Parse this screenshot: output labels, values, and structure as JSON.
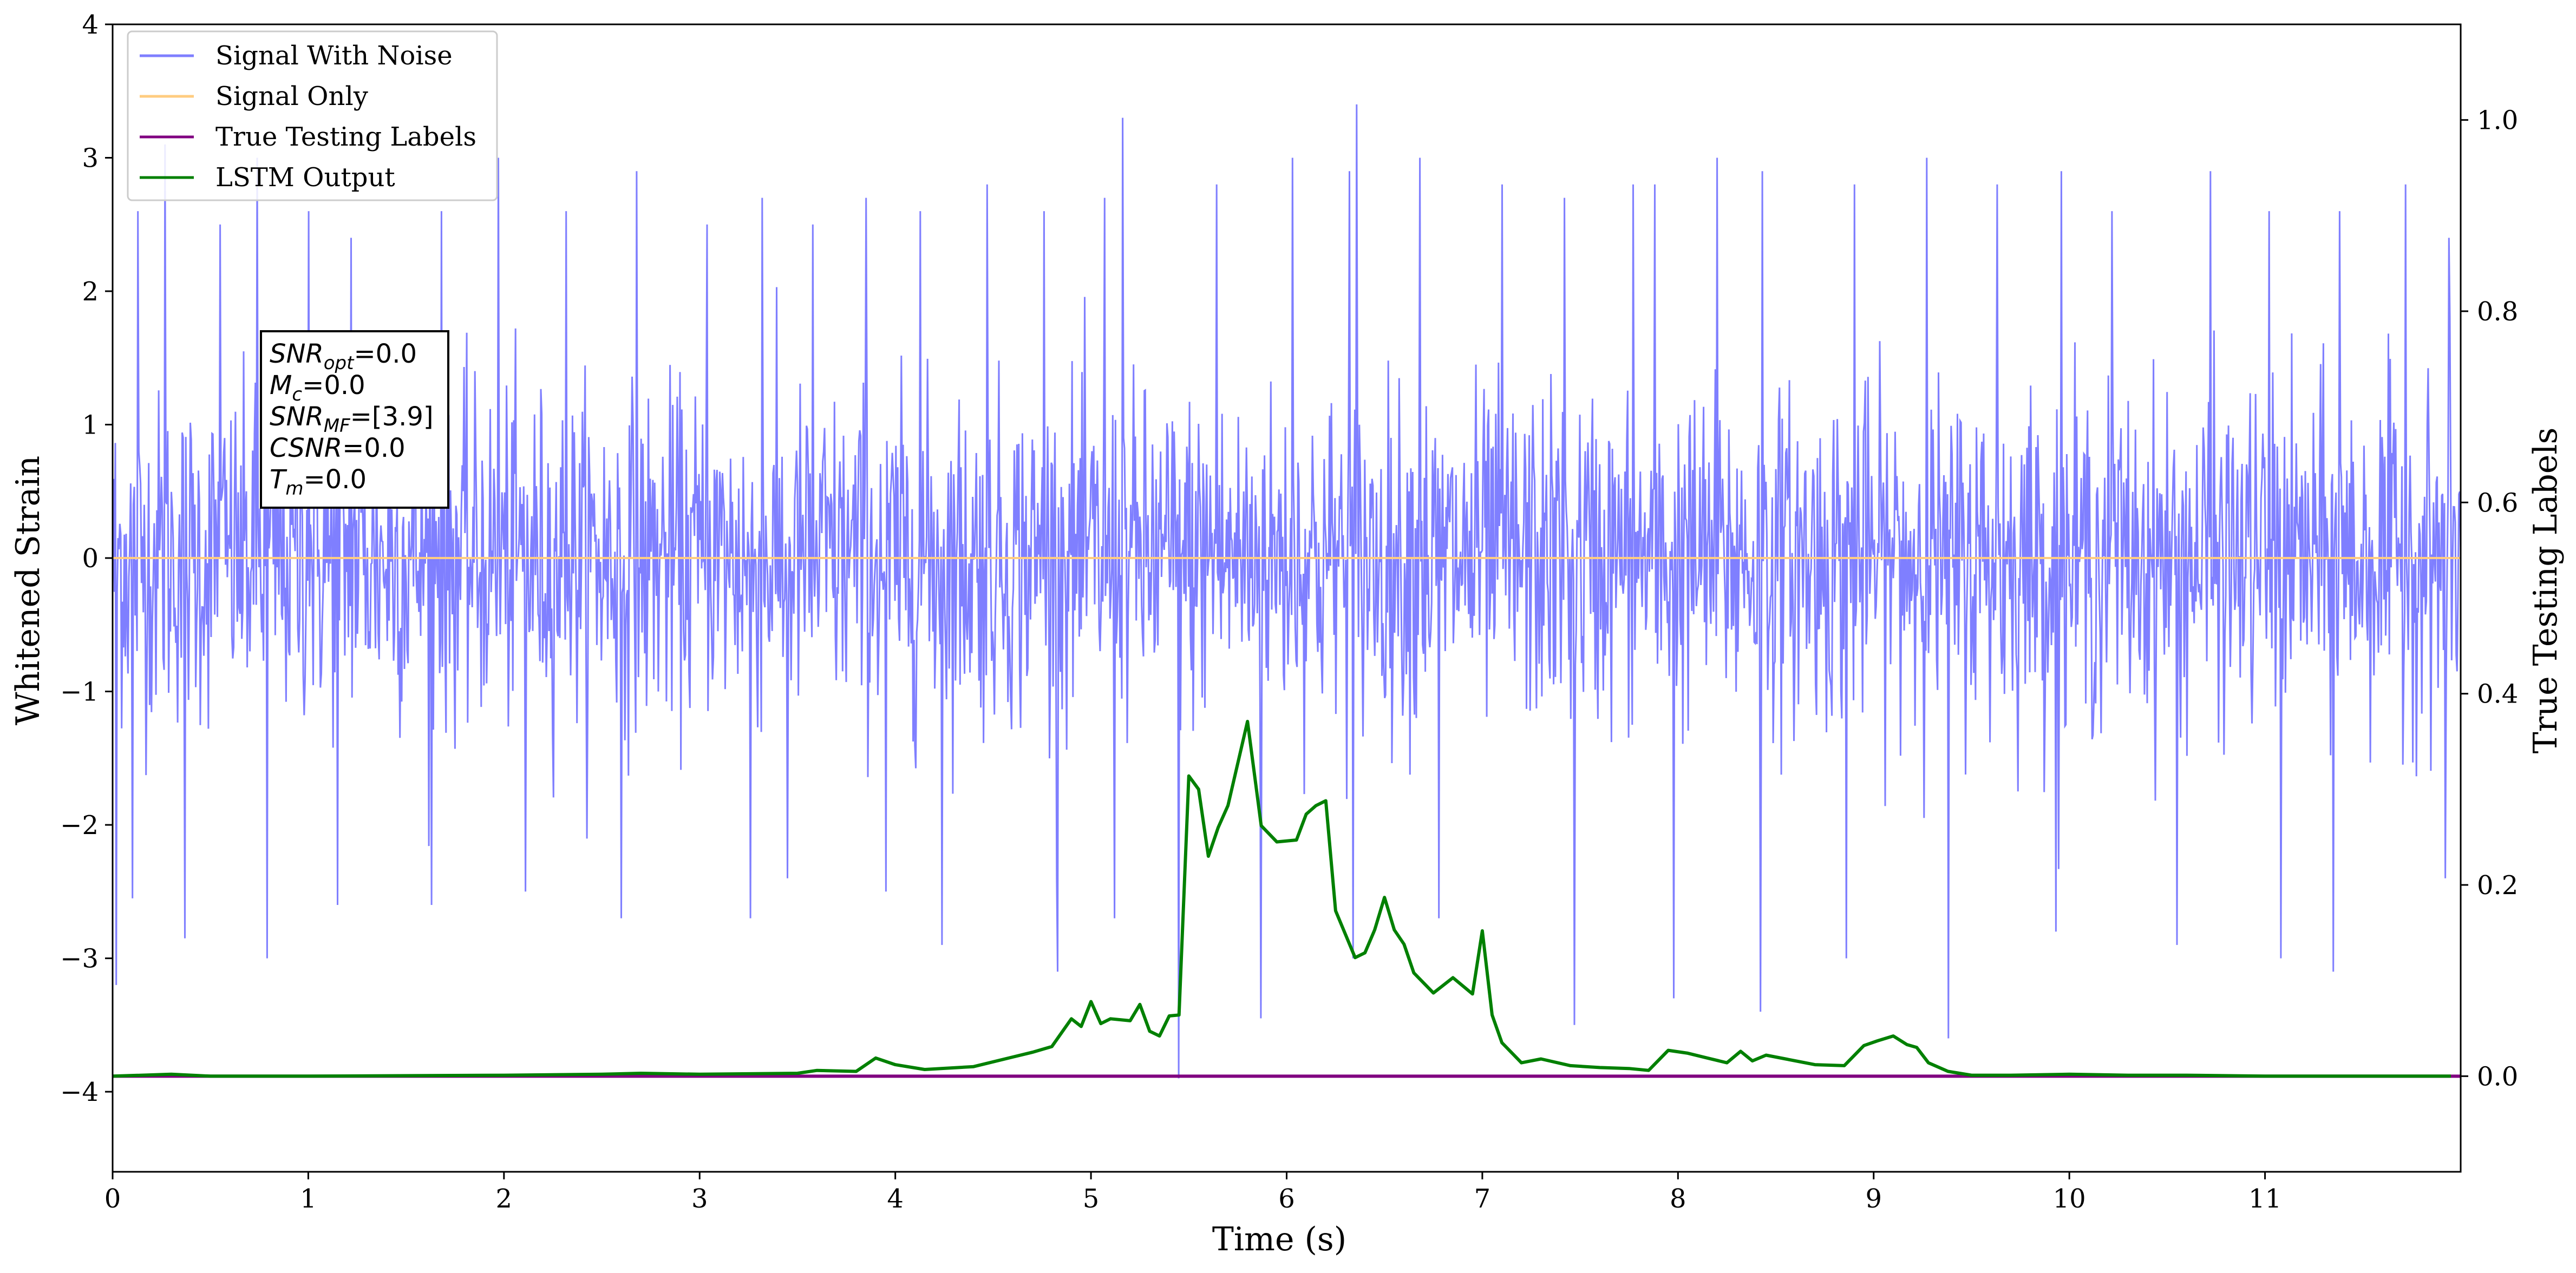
{
  "chart_data": {
    "type": "line",
    "xlabel": "Time (s)",
    "ylabel": "Whitened Strain",
    "y2label": "True Testing Labels",
    "xlim": [
      0,
      12.0
    ],
    "ylim": [
      -4.6,
      4.0
    ],
    "y2lim": [
      -0.1,
      1.1
    ],
    "xticks": [
      0,
      1,
      2,
      3,
      4,
      5,
      6,
      7,
      8,
      9,
      10,
      11
    ],
    "yticks": [
      -4,
      -3,
      -2,
      -1,
      0,
      1,
      2,
      3,
      4
    ],
    "y2ticks": [
      0.0,
      0.2,
      0.4,
      0.6,
      0.8,
      1.0
    ],
    "grid": false,
    "legend_position": "top-left",
    "series": [
      {
        "name": "Signal With Noise",
        "axis": "left",
        "color": "#7f7fff",
        "summary": "whitened noise between about -3.6 and 3.6 over 0-12 s",
        "peaks_positive": [
          [
            0.02,
            2.4
          ],
          [
            0.13,
            2.6
          ],
          [
            0.27,
            3.1
          ],
          [
            0.37,
            2.8
          ],
          [
            0.55,
            2.5
          ],
          [
            0.74,
            3.0
          ],
          [
            1.0,
            2.6
          ],
          [
            1.22,
            2.4
          ],
          [
            1.68,
            2.6
          ],
          [
            1.97,
            3.0
          ],
          [
            2.32,
            2.6
          ],
          [
            2.68,
            2.9
          ],
          [
            3.04,
            2.5
          ],
          [
            3.32,
            2.7
          ],
          [
            3.58,
            2.5
          ],
          [
            3.85,
            2.7
          ],
          [
            4.13,
            2.6
          ],
          [
            4.47,
            2.8
          ],
          [
            4.76,
            2.6
          ],
          [
            5.07,
            2.7
          ],
          [
            5.16,
            3.3
          ],
          [
            5.64,
            2.8
          ],
          [
            6.03,
            3.0
          ],
          [
            6.36,
            3.4
          ],
          [
            6.32,
            2.9
          ],
          [
            6.68,
            3.0
          ],
          [
            7.1,
            2.8
          ],
          [
            7.42,
            2.7
          ],
          [
            7.77,
            2.8
          ],
          [
            7.88,
            2.8
          ],
          [
            8.2,
            3.0
          ],
          [
            8.43,
            2.9
          ],
          [
            8.9,
            2.8
          ],
          [
            9.27,
            3.0
          ],
          [
            9.63,
            2.8
          ],
          [
            9.96,
            2.9
          ],
          [
            10.22,
            2.6
          ],
          [
            10.72,
            2.9
          ],
          [
            11.02,
            2.6
          ],
          [
            11.38,
            2.6
          ],
          [
            11.72,
            2.8
          ],
          [
            11.94,
            2.4
          ]
        ],
        "peaks_negative": [
          [
            0.02,
            -3.2
          ],
          [
            0.1,
            -2.55
          ],
          [
            0.37,
            -2.85
          ],
          [
            0.79,
            -3.0
          ],
          [
            1.15,
            -2.6
          ],
          [
            1.63,
            -2.6
          ],
          [
            2.11,
            -2.5
          ],
          [
            2.6,
            -2.7
          ],
          [
            3.26,
            -2.7
          ],
          [
            3.45,
            -2.4
          ],
          [
            3.95,
            -2.5
          ],
          [
            4.24,
            -2.9
          ],
          [
            4.83,
            -3.1
          ],
          [
            5.12,
            -2.7
          ],
          [
            5.45,
            -3.9
          ],
          [
            5.87,
            -3.45
          ],
          [
            6.34,
            -3.0
          ],
          [
            6.78,
            -2.7
          ],
          [
            7.47,
            -3.5
          ],
          [
            7.98,
            -3.3
          ],
          [
            8.42,
            -3.4
          ],
          [
            8.86,
            -3.0
          ],
          [
            9.38,
            -3.6
          ],
          [
            9.93,
            -2.8
          ],
          [
            10.55,
            -2.9
          ],
          [
            11.08,
            -3.0
          ],
          [
            11.35,
            -3.1
          ],
          [
            11.92,
            -2.4
          ]
        ]
      },
      {
        "name": "Signal Only",
        "axis": "left",
        "color": "#ffcc80",
        "x": [
          0,
          12
        ],
        "y": [
          0,
          0
        ]
      },
      {
        "name": "True Testing Labels",
        "axis": "right",
        "color": "#800080",
        "x": [
          0,
          12
        ],
        "y": [
          0,
          0
        ]
      },
      {
        "name": "LSTM Output",
        "axis": "right",
        "color": "#008000",
        "x": [
          0.0,
          0.3,
          0.5,
          1.0,
          2.0,
          2.5,
          2.7,
          3.0,
          3.5,
          3.6,
          3.8,
          3.9,
          4.0,
          4.15,
          4.4,
          4.6,
          4.7,
          4.8,
          4.9,
          4.95,
          5.0,
          5.05,
          5.1,
          5.2,
          5.25,
          5.3,
          5.35,
          5.4,
          5.45,
          5.5,
          5.55,
          5.6,
          5.65,
          5.7,
          5.8,
          5.87,
          5.95,
          6.05,
          6.1,
          6.15,
          6.2,
          6.25,
          6.35,
          6.4,
          6.45,
          6.5,
          6.55,
          6.6,
          6.65,
          6.75,
          6.85,
          6.95,
          7.0,
          7.05,
          7.1,
          7.2,
          7.3,
          7.45,
          7.6,
          7.75,
          7.85,
          7.95,
          8.05,
          8.15,
          8.25,
          8.32,
          8.38,
          8.45,
          8.55,
          8.7,
          8.85,
          8.95,
          9.02,
          9.1,
          9.17,
          9.22,
          9.28,
          9.38,
          9.5,
          9.7,
          10.0,
          10.3,
          10.6,
          11.0,
          11.5,
          11.95
        ],
        "y": [
          0.0,
          0.002,
          0.0,
          0.0,
          0.001,
          0.002,
          0.003,
          0.002,
          0.003,
          0.006,
          0.005,
          0.019,
          0.012,
          0.007,
          0.01,
          0.02,
          0.025,
          0.031,
          0.06,
          0.052,
          0.078,
          0.055,
          0.06,
          0.058,
          0.075,
          0.047,
          0.042,
          0.063,
          0.064,
          0.314,
          0.3,
          0.23,
          0.26,
          0.283,
          0.371,
          0.262,
          0.245,
          0.247,
          0.274,
          0.283,
          0.288,
          0.173,
          0.124,
          0.129,
          0.153,
          0.187,
          0.153,
          0.138,
          0.108,
          0.087,
          0.103,
          0.086,
          0.152,
          0.064,
          0.035,
          0.014,
          0.018,
          0.011,
          0.009,
          0.008,
          0.006,
          0.027,
          0.024,
          0.019,
          0.014,
          0.026,
          0.016,
          0.022,
          0.018,
          0.012,
          0.011,
          0.032,
          0.037,
          0.042,
          0.033,
          0.03,
          0.014,
          0.005,
          0.001,
          0.001,
          0.002,
          0.001,
          0.001,
          0.0,
          0.0,
          0.0
        ]
      }
    ]
  },
  "info_box": {
    "snr_opt": {
      "var": "SNR",
      "sub": "opt",
      "value": "=0.0"
    },
    "mc": {
      "var": "M",
      "sub": "c",
      "value": "=0.0"
    },
    "snr_mf": {
      "var": "SNR",
      "sub": "MF",
      "value": "=[3.9]"
    },
    "csnr": {
      "var": "CSNR",
      "value": "=0.0"
    },
    "tm": {
      "var": "T",
      "sub": "m",
      "value": "=0.0"
    }
  },
  "legend": [
    {
      "label": "Signal With Noise",
      "color": "#7f7fff"
    },
    {
      "label": "Signal Only",
      "color": "#ffcc80"
    },
    {
      "label": "True Testing Labels",
      "color": "#800080"
    },
    {
      "label": "LSTM Output",
      "color": "#008000"
    }
  ]
}
